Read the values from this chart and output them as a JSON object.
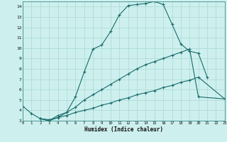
{
  "xlabel": "Humidex (Indice chaleur)",
  "bg_color": "#cdf0ee",
  "grid_color": "#a8d8d4",
  "line_color": "#1a6b6b",
  "xlim": [
    0,
    23
  ],
  "ylim": [
    3,
    14.5
  ],
  "xticks": [
    0,
    1,
    2,
    3,
    4,
    5,
    6,
    7,
    8,
    9,
    10,
    11,
    12,
    13,
    14,
    15,
    16,
    17,
    18,
    19,
    20,
    21,
    22,
    23
  ],
  "yticks": [
    3,
    4,
    5,
    6,
    7,
    8,
    9,
    10,
    11,
    12,
    13,
    14
  ],
  "line1_x": [
    0,
    1,
    2,
    3,
    4,
    5,
    6,
    7,
    8,
    9,
    10,
    11,
    12,
    13,
    14,
    15,
    16,
    17,
    18,
    19,
    20,
    21
  ],
  "line1_y": [
    4.4,
    3.7,
    3.2,
    3.1,
    3.3,
    3.8,
    5.3,
    7.7,
    9.9,
    10.3,
    11.6,
    13.2,
    14.1,
    14.2,
    14.3,
    14.5,
    14.2,
    12.3,
    10.4,
    9.7,
    9.5,
    7.2
  ],
  "line2_x": [
    2,
    3,
    4,
    5,
    6,
    7,
    8,
    9,
    10,
    11,
    12,
    13,
    14,
    15,
    16,
    17,
    18,
    19,
    20,
    23
  ],
  "line2_y": [
    3.2,
    3.0,
    3.5,
    3.8,
    4.3,
    5.0,
    5.5,
    6.0,
    6.5,
    7.0,
    7.5,
    8.0,
    8.4,
    8.7,
    9.0,
    9.3,
    9.6,
    9.9,
    5.3,
    5.1
  ],
  "line3_x": [
    2,
    3,
    4,
    5,
    6,
    7,
    8,
    9,
    10,
    11,
    12,
    13,
    14,
    15,
    16,
    17,
    18,
    19,
    20,
    23
  ],
  "line3_y": [
    3.2,
    3.0,
    3.3,
    3.5,
    3.8,
    4.0,
    4.2,
    4.5,
    4.7,
    5.0,
    5.2,
    5.5,
    5.7,
    5.9,
    6.2,
    6.4,
    6.7,
    6.9,
    7.2,
    5.1
  ]
}
